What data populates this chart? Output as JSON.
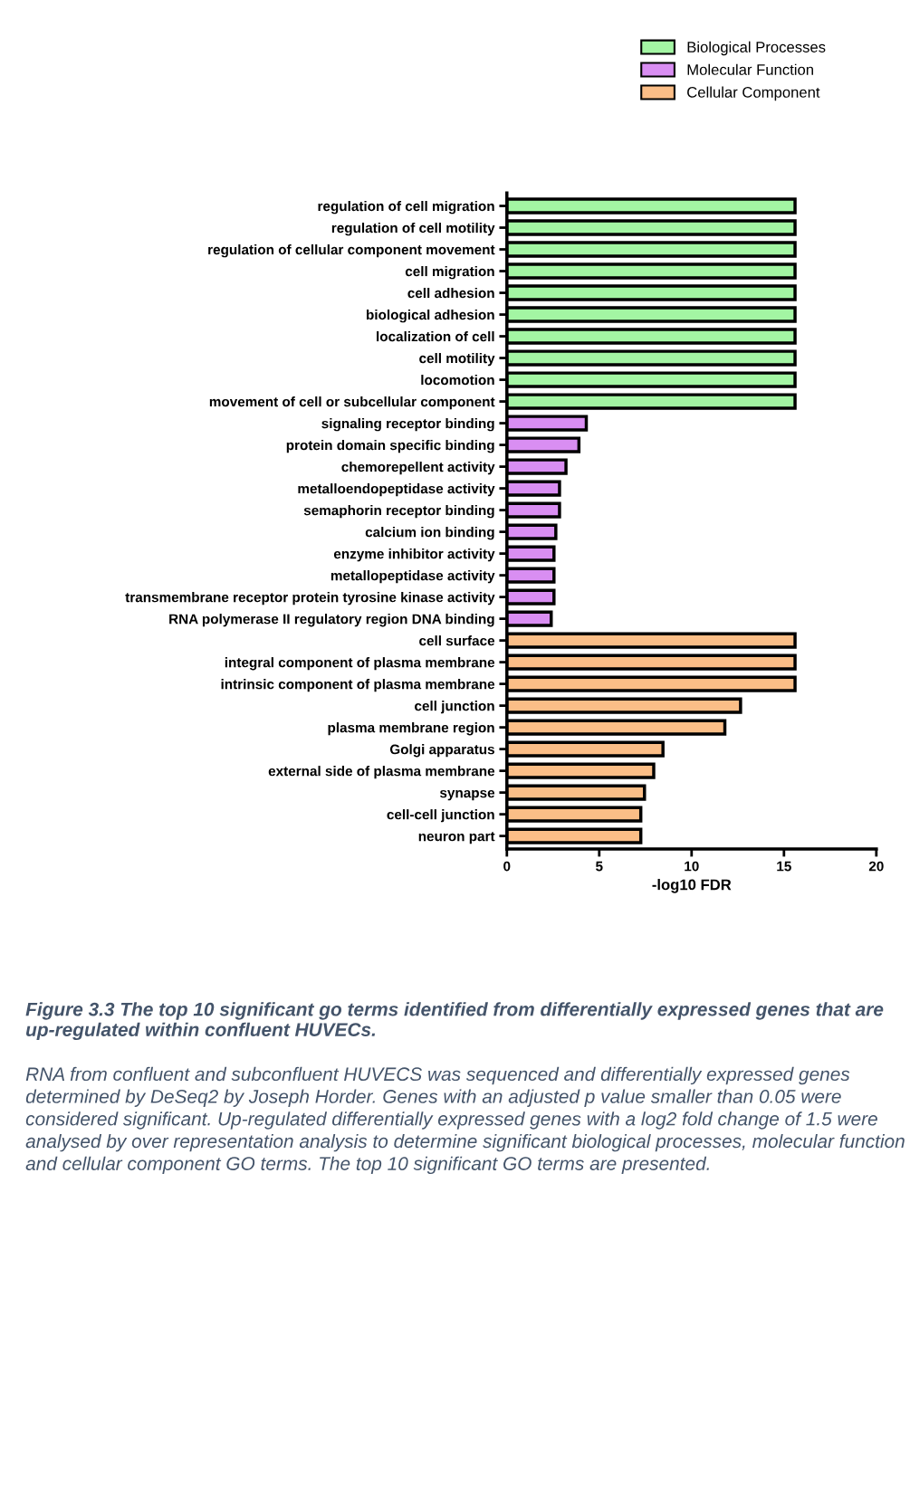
{
  "chart_data": {
    "type": "bar",
    "orientation": "horizontal",
    "xlabel": "-log10 FDR",
    "categories": [
      "regulation of cell migration",
      "regulation of cell motility",
      "regulation of cellular component movement",
      "cell migration",
      "cell adhesion",
      "biological adhesion",
      "localization of cell",
      "cell motility",
      "locomotion",
      "movement of cell or subcellular component",
      "signaling receptor binding",
      "protein domain specific binding",
      "chemorepellent activity",
      "metalloendopeptidase activity",
      "semaphorin receptor binding",
      "calcium ion binding",
      "enzyme inhibitor activity",
      "metallopeptidase activity",
      "transmembrane receptor protein tyrosine kinase activity",
      "RNA polymerase II regulatory region DNA binding",
      "cell surface",
      "integral component of plasma membrane",
      "intrinsic component of plasma membrane",
      "cell junction",
      "plasma membrane region",
      "Golgi apparatus",
      "external side of plasma membrane",
      "synapse",
      "cell-cell junction",
      "neuron part"
    ],
    "series": [
      {
        "name": "Biological Processes",
        "color": "#a3f5a3",
        "values": [
          15.6,
          15.6,
          15.6,
          15.6,
          15.6,
          15.6,
          15.6,
          15.6,
          15.6,
          15.6,
          null,
          null,
          null,
          null,
          null,
          null,
          null,
          null,
          null,
          null,
          null,
          null,
          null,
          null,
          null,
          null,
          null,
          null,
          null,
          null
        ]
      },
      {
        "name": "Molecular Function",
        "color": "#d98ef2",
        "values": [
          null,
          null,
          null,
          null,
          null,
          null,
          null,
          null,
          null,
          null,
          4.3,
          3.9,
          3.2,
          2.85,
          2.85,
          2.65,
          2.55,
          2.55,
          2.55,
          2.4,
          null,
          null,
          null,
          null,
          null,
          null,
          null,
          null,
          null,
          null
        ]
      },
      {
        "name": "Cellular Component",
        "color": "#fbbe87",
        "values": [
          null,
          null,
          null,
          null,
          null,
          null,
          null,
          null,
          null,
          null,
          null,
          null,
          null,
          null,
          null,
          null,
          null,
          null,
          null,
          null,
          15.6,
          15.6,
          15.6,
          12.65,
          11.8,
          8.45,
          7.95,
          7.45,
          7.25,
          7.25
        ]
      }
    ],
    "xlim": [
      0,
      20
    ],
    "xticks": [
      0,
      5,
      10,
      15,
      20
    ],
    "legend": "top right",
    "grid": false,
    "annotations": [
      "Figure 3.3 The top 10 significant go terms identified from differentially expressed genes that are up-regulated within confluent HUVECs.",
      "RNA from confluent and subconfluent HUVECS was sequenced and differentially expressed genes determined by DeSeq2 by Joseph Horder. Genes with an adjusted p value smaller than 0.05 were considered significant. Up-regulated differentially expressed genes with a log2 fold change of 1.5 were analysed by over representation analysis to determine significant biological processes, molecular function and cellular component GO terms. The top 10 significant GO terms are presented."
    ]
  }
}
